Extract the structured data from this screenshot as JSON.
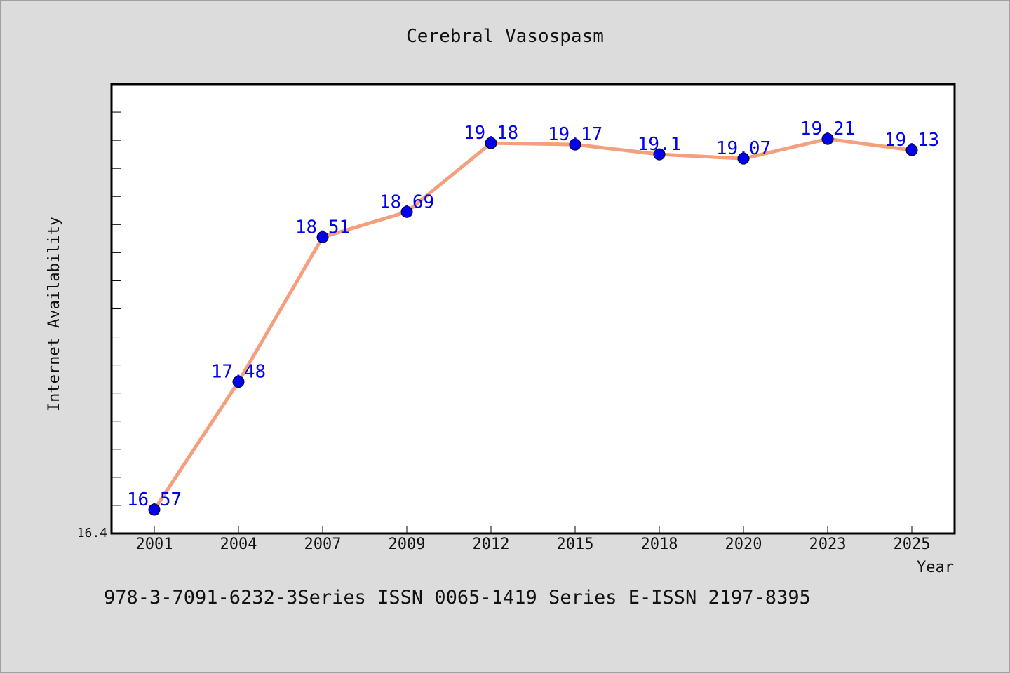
{
  "chart_data": {
    "type": "line",
    "title": "Cerebral Vasospasm",
    "xlabel": "Year",
    "ylabel": "Internet Availability",
    "categories": [
      "2001",
      "2004",
      "2007",
      "2009",
      "2012",
      "2015",
      "2018",
      "2020",
      "2023",
      "2025"
    ],
    "series": [
      {
        "values": [
          16.57,
          17.48,
          18.51,
          18.69,
          19.18,
          19.17,
          19.1,
          19.07,
          19.21,
          19.13
        ],
        "data_labels": [
          "16.57",
          "17.48",
          "18.51",
          "18.69",
          "19.18",
          "19.17",
          "19.1",
          "19.07",
          "19.21",
          "19.13"
        ]
      }
    ],
    "ylim": [
      16.4,
      19.6
    ],
    "y_min_label": "16.4",
    "grid": false,
    "legend": "none",
    "colors": {
      "line": "#f4a07e",
      "marker": "#0000ee",
      "data_label": "#0000ee",
      "plot_background": "#ffffff",
      "page_background": "#dcdcdc"
    }
  },
  "footer": {
    "text": "978-3-7091-6232-3Series ISSN 0065-1419 Series E-ISSN 2197-8395"
  }
}
